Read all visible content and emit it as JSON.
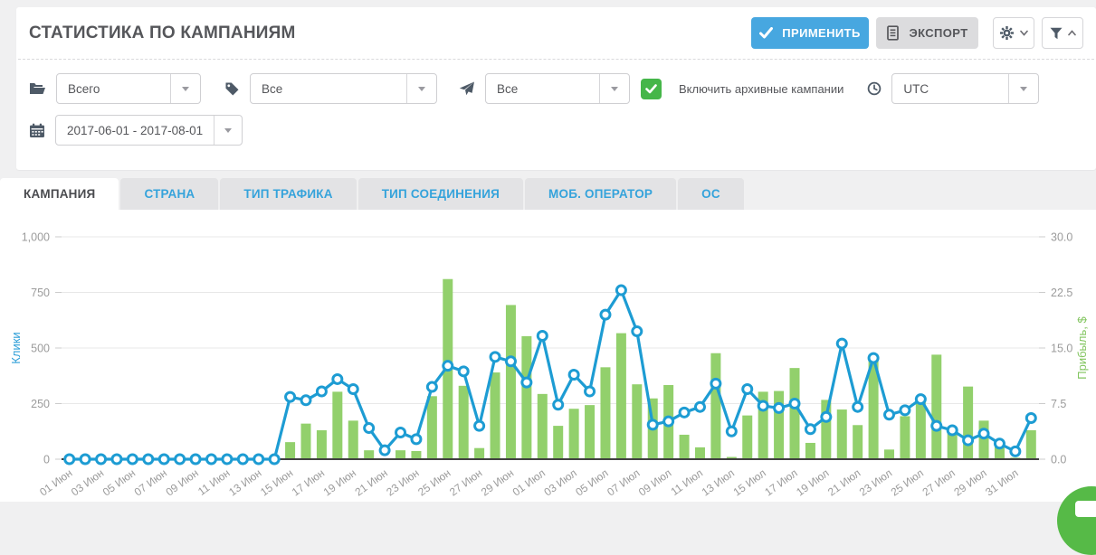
{
  "header": {
    "title": "СТАТИСТИКА ПО КАМПАНИЯМ",
    "apply_label": "ПРИМЕНИТЬ",
    "export_label": "ЭКСПОРТ"
  },
  "filters": {
    "campaign_group": {
      "icon": "folder-icon",
      "value": "Всего"
    },
    "tags": {
      "icon": "tag-icon",
      "value": "Все"
    },
    "traffic_source": {
      "icon": "paper-plane-icon",
      "value": "Все"
    },
    "include_archived": {
      "checked": true,
      "label": "Включить архивные кампании"
    },
    "timezone": {
      "icon": "clock-icon",
      "value": "UTC"
    },
    "date_range": {
      "icon": "calendar-icon",
      "value": "2017-06-01 - 2017-08-01"
    }
  },
  "tabs": [
    {
      "name": "campaign",
      "label": "КАМПАНИЯ",
      "active": true
    },
    {
      "name": "country",
      "label": "СТРАНА",
      "active": false
    },
    {
      "name": "traffic-type",
      "label": "ТИП ТРАФИКА",
      "active": false
    },
    {
      "name": "connection-type",
      "label": "ТИП СОЕДИНЕНИЯ",
      "active": false
    },
    {
      "name": "mobile-operator",
      "label": "МОБ. ОПЕРАТОР",
      "active": false
    },
    {
      "name": "os",
      "label": "ОС",
      "active": false
    }
  ],
  "colors": {
    "accent_blue": "#47a7e0",
    "checkbox_green": "#45b649",
    "line_blue": "#1d9cd3",
    "bar_green": "#92d06c",
    "left_axis_title": "#2f9fd8",
    "right_axis_title": "#82c55f",
    "tick_text": "#9b9b9b",
    "gridline": "#e8e8e8",
    "baseline": "#404040"
  },
  "chart_data": {
    "type": "bar+line combo",
    "x_label_interval": 2,
    "x": [
      "01 Июн",
      "02 Июн",
      "03 Июн",
      "04 Июн",
      "05 Июн",
      "06 Июн",
      "07 Июн",
      "08 Июн",
      "09 Июн",
      "10 Июн",
      "11 Июн",
      "12 Июн",
      "13 Июн",
      "14 Июн",
      "15 Июн",
      "16 Июн",
      "17 Июн",
      "18 Июн",
      "19 Июн",
      "20 Июн",
      "21 Июн",
      "22 Июн",
      "23 Июн",
      "24 Июн",
      "25 Июн",
      "26 Июн",
      "27 Июн",
      "28 Июн",
      "29 Июн",
      "30 Июн",
      "01 Июл",
      "02 Июл",
      "03 Июл",
      "04 Июл",
      "05 Июл",
      "06 Июл",
      "07 Июл",
      "08 Июл",
      "09 Июл",
      "10 Июл",
      "11 Июл",
      "12 Июл",
      "13 Июл",
      "14 Июл",
      "15 Июл",
      "16 Июл",
      "17 Июл",
      "18 Июл",
      "19 Июл",
      "20 Июл",
      "21 Июл",
      "22 Июл",
      "23 Июл",
      "24 Июл",
      "25 Июл",
      "26 Июл",
      "27 Июл",
      "28 Июл",
      "29 Июл",
      "30 Июл",
      "31 Июл",
      "01 Авг"
    ],
    "series": [
      {
        "name": "Клики",
        "type": "line",
        "axis": "left",
        "color": "#1d9cd3",
        "values": [
          0,
          0,
          0,
          0,
          0,
          0,
          0,
          0,
          0,
          0,
          0,
          0,
          0,
          0,
          280,
          265,
          305,
          360,
          315,
          140,
          40,
          120,
          90,
          325,
          420,
          395,
          150,
          460,
          440,
          345,
          555,
          245,
          380,
          305,
          650,
          760,
          575,
          155,
          170,
          210,
          235,
          340,
          125,
          315,
          240,
          230,
          250,
          135,
          190,
          520,
          235,
          455,
          200,
          220,
          270,
          150,
          130,
          85,
          115,
          70,
          35,
          185
        ]
      },
      {
        "name": "Прибыль, $",
        "type": "bar",
        "axis": "right",
        "color": "#92d06c",
        "values": [
          0,
          0,
          0,
          0,
          0,
          0,
          0,
          0,
          0,
          0,
          0,
          0,
          0,
          0,
          2.3,
          4.8,
          3.9,
          9.1,
          5.2,
          1.2,
          0,
          1.2,
          1.1,
          8.5,
          24.3,
          9.9,
          1.5,
          11.7,
          20.8,
          16.6,
          8.8,
          4.5,
          6.8,
          7.3,
          12.4,
          17,
          10.1,
          8.2,
          10,
          3.3,
          1.6,
          14.3,
          0.3,
          5.9,
          9.1,
          9.2,
          12.3,
          2.2,
          8,
          6.7,
          4.6,
          14.1,
          1.3,
          5.8,
          7.9,
          14.1,
          3.9,
          9.8,
          5.2,
          1.9,
          0.2,
          3.9
        ]
      }
    ],
    "left_axis": {
      "title": "Клики",
      "max": 1000,
      "ticks": [
        "0",
        "250",
        "500",
        "750",
        "1,000"
      ]
    },
    "right_axis": {
      "title": "Прибыль, $",
      "max": 30,
      "ticks": [
        "0.0",
        "7.5",
        "15.0",
        "22.5",
        "30.0"
      ]
    },
    "grid": "horizontal only",
    "legend": "none"
  }
}
